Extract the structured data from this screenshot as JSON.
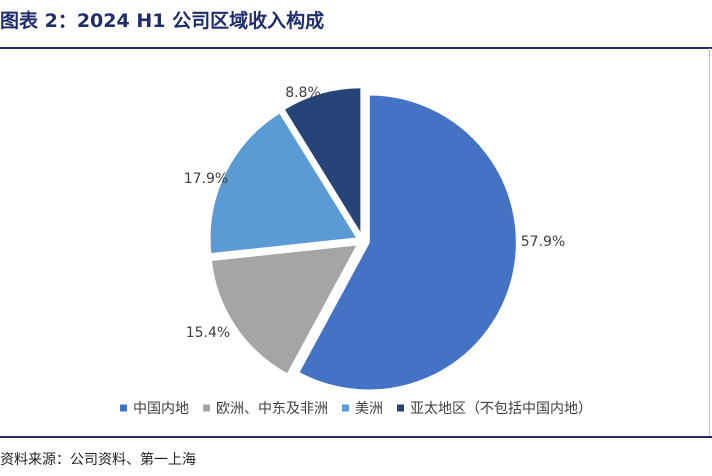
{
  "header": {
    "title": "图表 2：2024 H1 公司区域收入构成"
  },
  "footer": {
    "source": "资料来源：公司资料、第一上海"
  },
  "chart_data": {
    "type": "pie",
    "title": "",
    "start_angle_deg": 0,
    "direction": "clockwise",
    "legend_position": "bottom",
    "slices": [
      {
        "label": "中国内地",
        "value": 57.9,
        "display": "57.9%",
        "color": "#4472c4"
      },
      {
        "label": "欧洲、中东及非洲",
        "value": 15.4,
        "display": "15.4%",
        "color": "#a5a5a5"
      },
      {
        "label": "美洲",
        "value": 17.9,
        "display": "17.9%",
        "color": "#5b9bd5"
      },
      {
        "label": "亚太地区（不包括中国内地）",
        "value": 8.8,
        "display": "8.8%",
        "color": "#264478"
      }
    ]
  }
}
